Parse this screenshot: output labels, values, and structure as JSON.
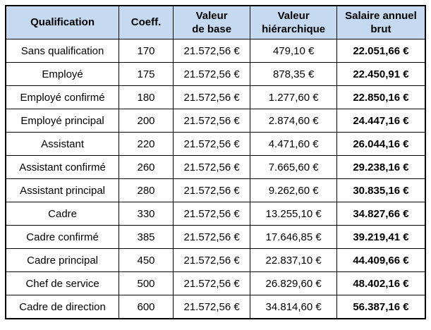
{
  "colors": {
    "header_bg": "#c5d9f1",
    "border": "#000000",
    "text": "#000000",
    "row_bg": "#ffffff"
  },
  "table": {
    "columns": [
      {
        "id": "qualification",
        "label": "Qualification"
      },
      {
        "id": "coeff",
        "label": "Coeff."
      },
      {
        "id": "valeur-de-base",
        "label": "Valeur\nde base"
      },
      {
        "id": "valeur-hierarchique",
        "label": "Valeur\nhiérarchique"
      },
      {
        "id": "salaire-annuel-brut",
        "label": "Salaire annuel\nbrut"
      }
    ],
    "rows": [
      [
        "Sans qualification",
        "170",
        "21.572,56 €",
        "479,10 €",
        "22.051,66 €"
      ],
      [
        "Employé",
        "175",
        "21.572,56 €",
        "878,35 €",
        "22.450,91 €"
      ],
      [
        "Employé confirmé",
        "180",
        "21.572,56 €",
        "1.277,60 €",
        "22.850,16 €"
      ],
      [
        "Employé principal",
        "200",
        "21.572,56 €",
        "2.874,60 €",
        "24.447,16 €"
      ],
      [
        "Assistant",
        "220",
        "21.572,56 €",
        "4.471,60 €",
        "26.044,16 €"
      ],
      [
        "Assistant confirmé",
        "260",
        "21.572,56 €",
        "7.665,60 €",
        "29.238,16 €"
      ],
      [
        "Assistant principal",
        "280",
        "21.572,56 €",
        "9.262,60 €",
        "30.835,16 €"
      ],
      [
        "Cadre",
        "330",
        "21.572,56 €",
        "13.255,10 €",
        "34.827,66 €"
      ],
      [
        "Cadre confirmé",
        "385",
        "21.572,56 €",
        "17.646,85 €",
        "39.219,41 €"
      ],
      [
        "Cadre principal",
        "450",
        "21.572,56 €",
        "22.837,10 €",
        "44.409,66 €"
      ],
      [
        "Chef de service",
        "500",
        "21.572,56 €",
        "26.829,60 €",
        "48.402,16 €"
      ],
      [
        "Cadre de direction",
        "600",
        "21.572,56 €",
        "34.814,60 €",
        "56.387,16 €"
      ]
    ]
  }
}
